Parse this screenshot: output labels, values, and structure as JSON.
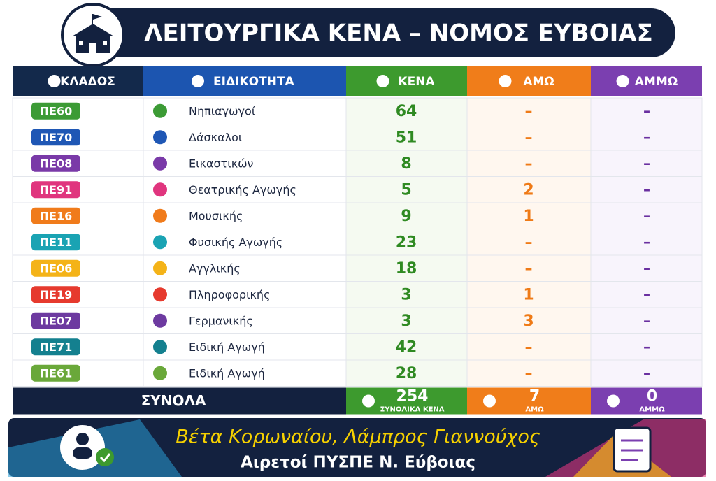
{
  "header": {
    "title": "ΛΕΙΤΟΥΡΓΙΚΑ ΚΕΝΑ – ΝΟΜΟΣ ΕΥΒΟΙΑΣ"
  },
  "table": {
    "columns": [
      {
        "label": "ΚΛΑΔΟΣ",
        "color": "#13294b"
      },
      {
        "label": "ΕΙΔΙΚΟΤΗΤΑ",
        "color": "#1c55b0"
      },
      {
        "label": "ΚΕΝΑ",
        "color": "#3d9a2e"
      },
      {
        "label": "ΑΜΩ",
        "color": "#f07d1a"
      },
      {
        "label": "ΑΜΜΩ",
        "color": "#7b3fb0"
      }
    ],
    "rows": [
      {
        "code": "ΠΕ60",
        "color": "#3c9b35",
        "specialty": "Νηπιαγωγοί",
        "kena": 64,
        "amo": "–",
        "ammo": "–"
      },
      {
        "code": "ΠΕ70",
        "color": "#1f57b5",
        "specialty": "Δάσκαλοι",
        "kena": 51,
        "amo": "–",
        "ammo": "–"
      },
      {
        "code": "ΠΕ08",
        "color": "#7a3aa8",
        "specialty": "Εικαστικών",
        "kena": 8,
        "amo": "–",
        "ammo": "–"
      },
      {
        "code": "ΠΕ91",
        "color": "#e0357e",
        "specialty": "Θεατρικής Αγωγής",
        "kena": 5,
        "amo": 2,
        "ammo": "–"
      },
      {
        "code": "ΠΕ16",
        "color": "#f07b1b",
        "specialty": "Μουσικής",
        "kena": 9,
        "amo": 1,
        "ammo": "–"
      },
      {
        "code": "ΠΕ11",
        "color": "#1aa3b3",
        "specialty": "Φυσικής Αγωγής",
        "kena": 23,
        "amo": "–",
        "ammo": "–"
      },
      {
        "code": "ΠΕ06",
        "color": "#f4b318",
        "specialty": "Αγγλικής",
        "kena": 18,
        "amo": "–",
        "ammo": "–"
      },
      {
        "code": "ΠΕ19",
        "color": "#e63a2e",
        "specialty": "Πληροφορικής",
        "kena": 3,
        "amo": 1,
        "ammo": "–"
      },
      {
        "code": "ΠΕ07",
        "color": "#6d3aa0",
        "specialty": "Γερμανικής",
        "kena": 3,
        "amo": 3,
        "ammo": "–"
      },
      {
        "code": "ΠΕ71",
        "color": "#14808f",
        "specialty": "Ειδική Αγωγή",
        "kena": 42,
        "amo": "–",
        "ammo": "–"
      },
      {
        "code": "ΠΕ61",
        "color": "#6aa83a",
        "specialty": "Ειδική Αγωγή",
        "kena": 28,
        "amo": "–",
        "ammo": "–"
      }
    ]
  },
  "totals": {
    "label": "ΣΥΝΟΛΑ",
    "kena": 254,
    "kena_label": "ΣΥΝΟΛΙΚΑ ΚΕΝΑ",
    "amo": 7,
    "amo_label": "ΑΜΩ",
    "ammo": 0,
    "ammo_label": "ΑΜΜΩ"
  },
  "footer": {
    "names": "Βέτα Κορωναίου, Λάμπρος Γιαννούχος",
    "subtitle": "Αιρετοί ΠΥΣΠΕ Ν. Εύβοιας"
  }
}
